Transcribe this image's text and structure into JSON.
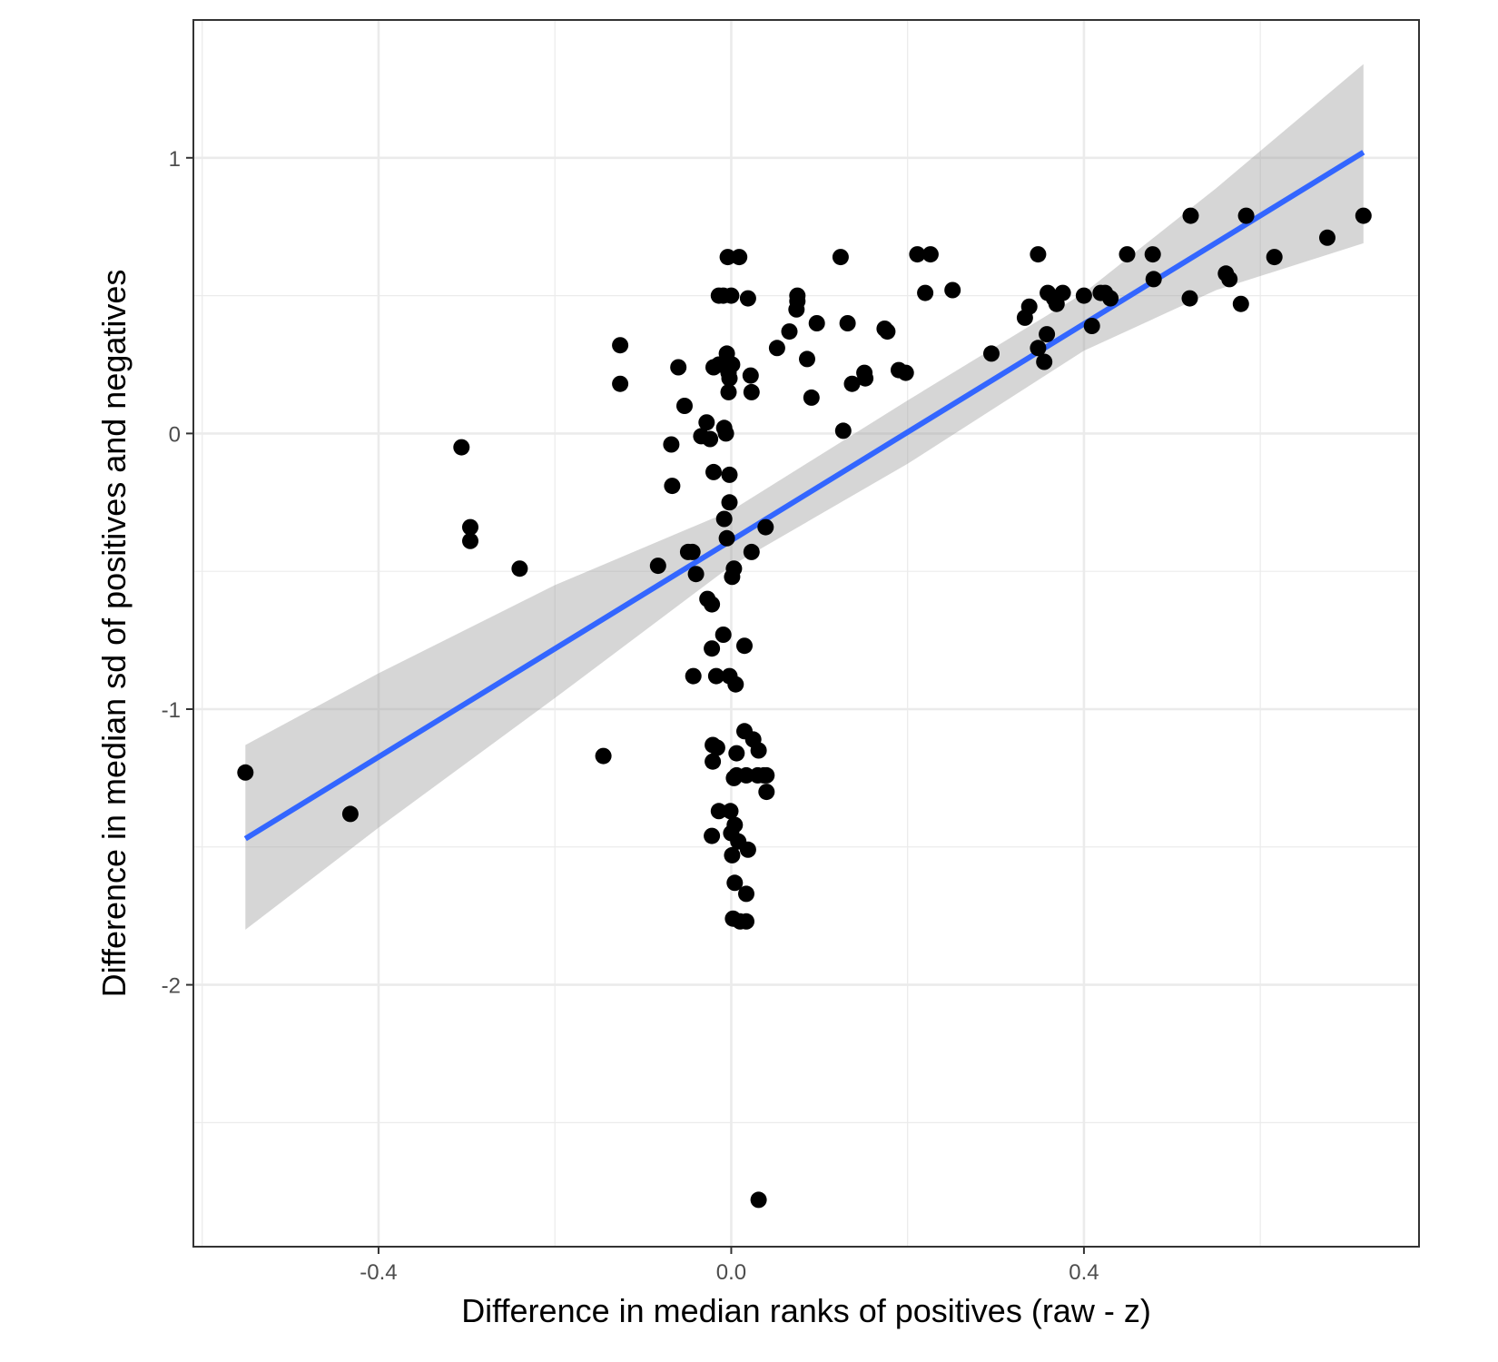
{
  "chart_data": {
    "type": "scatter",
    "xlabel": "Difference in median ranks of positives (raw - z)",
    "ylabel": "Difference in median sd of positives and negatives",
    "xlim": [
      -0.61,
      0.78
    ],
    "ylim": [
      -2.95,
      1.5
    ],
    "x_major_ticks": [
      -0.4,
      0.0,
      0.4
    ],
    "x_tick_labels": [
      "-0.4",
      "0.0",
      "0.4"
    ],
    "x_minor_ticks": [
      -0.6,
      -0.2,
      0.2,
      0.6
    ],
    "y_major_ticks": [
      -2,
      -1,
      0,
      1
    ],
    "y_tick_labels": [
      "-2",
      "-1",
      "0",
      "1"
    ],
    "y_minor_ticks": [
      -2.5,
      -1.5,
      -0.5,
      0.5
    ],
    "grid": true,
    "theme": "bw",
    "colors": {
      "points": "#000000",
      "fit_line": "#3366ff",
      "confidence_band": "#999999",
      "grid": "#ebebeb",
      "panel_border": "#333333"
    },
    "points": [
      [
        -0.551,
        -1.23
      ],
      [
        -0.432,
        -1.38
      ],
      [
        -0.306,
        -0.05
      ],
      [
        -0.296,
        -0.34
      ],
      [
        -0.296,
        -0.39
      ],
      [
        -0.24,
        -0.49
      ],
      [
        -0.145,
        -1.17
      ],
      [
        -0.126,
        0.32
      ],
      [
        -0.126,
        0.18
      ],
      [
        -0.083,
        -0.48
      ],
      [
        -0.068,
        -0.04
      ],
      [
        -0.067,
        -0.19
      ],
      [
        -0.06,
        0.24
      ],
      [
        -0.053,
        0.1
      ],
      [
        -0.049,
        -0.43
      ],
      [
        -0.044,
        -0.43
      ],
      [
        -0.04,
        -0.51
      ],
      [
        -0.043,
        -0.88
      ],
      [
        -0.034,
        -0.01
      ],
      [
        -0.028,
        0.04
      ],
      [
        -0.027,
        -0.6
      ],
      [
        -0.024,
        -0.02
      ],
      [
        -0.022,
        -0.62
      ],
      [
        -0.022,
        -0.78
      ],
      [
        -0.02,
        0.24
      ],
      [
        -0.02,
        -0.14
      ],
      [
        -0.021,
        -1.19
      ],
      [
        -0.021,
        -1.13
      ],
      [
        -0.022,
        -1.46
      ],
      [
        -0.017,
        -0.88
      ],
      [
        -0.016,
        -1.14
      ],
      [
        -0.014,
        0.5
      ],
      [
        -0.014,
        0.25
      ],
      [
        -0.014,
        -1.37
      ],
      [
        -0.009,
        0.5
      ],
      [
        -0.009,
        -0.73
      ],
      [
        -0.008,
        -0.31
      ],
      [
        -0.008,
        0.02
      ],
      [
        -0.006,
        0.0
      ],
      [
        -0.005,
        -0.38
      ],
      [
        -0.005,
        0.29
      ],
      [
        -0.004,
        0.64
      ],
      [
        -0.003,
        0.22
      ],
      [
        -0.003,
        0.15
      ],
      [
        -0.002,
        -0.15
      ],
      [
        -0.002,
        -0.25
      ],
      [
        -0.002,
        -0.88
      ],
      [
        -0.002,
        0.2
      ],
      [
        -0.001,
        -1.37
      ],
      [
        0.0,
        -1.45
      ],
      [
        0.0,
        0.5
      ],
      [
        0.001,
        0.25
      ],
      [
        0.001,
        -0.52
      ],
      [
        0.001,
        -1.53
      ],
      [
        0.002,
        -1.76
      ],
      [
        0.003,
        -1.25
      ],
      [
        0.003,
        -0.49
      ],
      [
        0.004,
        -1.63
      ],
      [
        0.004,
        -1.42
      ],
      [
        0.005,
        -0.91
      ],
      [
        0.006,
        -1.24
      ],
      [
        0.006,
        -1.16
      ],
      [
        0.008,
        -1.48
      ],
      [
        0.009,
        0.64
      ],
      [
        0.01,
        -1.77
      ],
      [
        0.015,
        -0.77
      ],
      [
        0.015,
        -1.08
      ],
      [
        0.017,
        -1.24
      ],
      [
        0.017,
        -1.67
      ],
      [
        0.017,
        -1.77
      ],
      [
        0.019,
        0.49
      ],
      [
        0.019,
        -1.51
      ],
      [
        0.022,
        0.21
      ],
      [
        0.023,
        0.15
      ],
      [
        0.023,
        -0.43
      ],
      [
        0.025,
        -1.11
      ],
      [
        0.03,
        -1.24
      ],
      [
        0.031,
        -1.15
      ],
      [
        0.031,
        -2.78
      ],
      [
        0.037,
        -1.24
      ],
      [
        0.039,
        -0.34
      ],
      [
        0.04,
        -1.24
      ],
      [
        0.04,
        -1.3
      ],
      [
        0.052,
        0.31
      ],
      [
        0.066,
        0.37
      ],
      [
        0.074,
        0.45
      ],
      [
        0.075,
        0.5
      ],
      [
        0.075,
        0.48
      ],
      [
        0.086,
        0.27
      ],
      [
        0.091,
        0.13
      ],
      [
        0.097,
        0.4
      ],
      [
        0.124,
        0.64
      ],
      [
        0.127,
        0.01
      ],
      [
        0.132,
        0.4
      ],
      [
        0.137,
        0.18
      ],
      [
        0.151,
        0.22
      ],
      [
        0.152,
        0.2
      ],
      [
        0.174,
        0.38
      ],
      [
        0.177,
        0.37
      ],
      [
        0.19,
        0.23
      ],
      [
        0.198,
        0.22
      ],
      [
        0.211,
        0.65
      ],
      [
        0.22,
        0.51
      ],
      [
        0.226,
        0.65
      ],
      [
        0.251,
        0.52
      ],
      [
        0.295,
        0.29
      ],
      [
        0.333,
        0.42
      ],
      [
        0.338,
        0.46
      ],
      [
        0.348,
        0.31
      ],
      [
        0.348,
        0.65
      ],
      [
        0.355,
        0.26
      ],
      [
        0.358,
        0.36
      ],
      [
        0.359,
        0.51
      ],
      [
        0.366,
        0.49
      ],
      [
        0.369,
        0.47
      ],
      [
        0.376,
        0.51
      ],
      [
        0.4,
        0.5
      ],
      [
        0.409,
        0.39
      ],
      [
        0.419,
        0.51
      ],
      [
        0.424,
        0.51
      ],
      [
        0.43,
        0.49
      ],
      [
        0.449,
        0.65
      ],
      [
        0.478,
        0.65
      ],
      [
        0.479,
        0.56
      ],
      [
        0.521,
        0.79
      ],
      [
        0.52,
        0.49
      ],
      [
        0.561,
        0.58
      ],
      [
        0.565,
        0.56
      ],
      [
        0.578,
        0.47
      ],
      [
        0.584,
        0.79
      ],
      [
        0.616,
        0.64
      ],
      [
        0.676,
        0.71
      ],
      [
        0.717,
        0.79
      ]
    ],
    "fit": {
      "method": "lm",
      "x": [
        -0.551,
        -0.4,
        -0.2,
        0.0,
        0.2,
        0.4,
        0.55,
        0.717
      ],
      "y": [
        -1.47,
        -1.15,
        -0.76,
        -0.38,
        0.01,
        0.4,
        0.7,
        1.02
      ],
      "ci_lower": [
        -1.8,
        -1.43,
        -0.96,
        -0.48,
        -0.11,
        0.3,
        0.52,
        0.69
      ],
      "ci_upper": [
        -1.13,
        -0.87,
        -0.55,
        -0.28,
        0.12,
        0.51,
        0.89,
        1.34
      ]
    }
  }
}
